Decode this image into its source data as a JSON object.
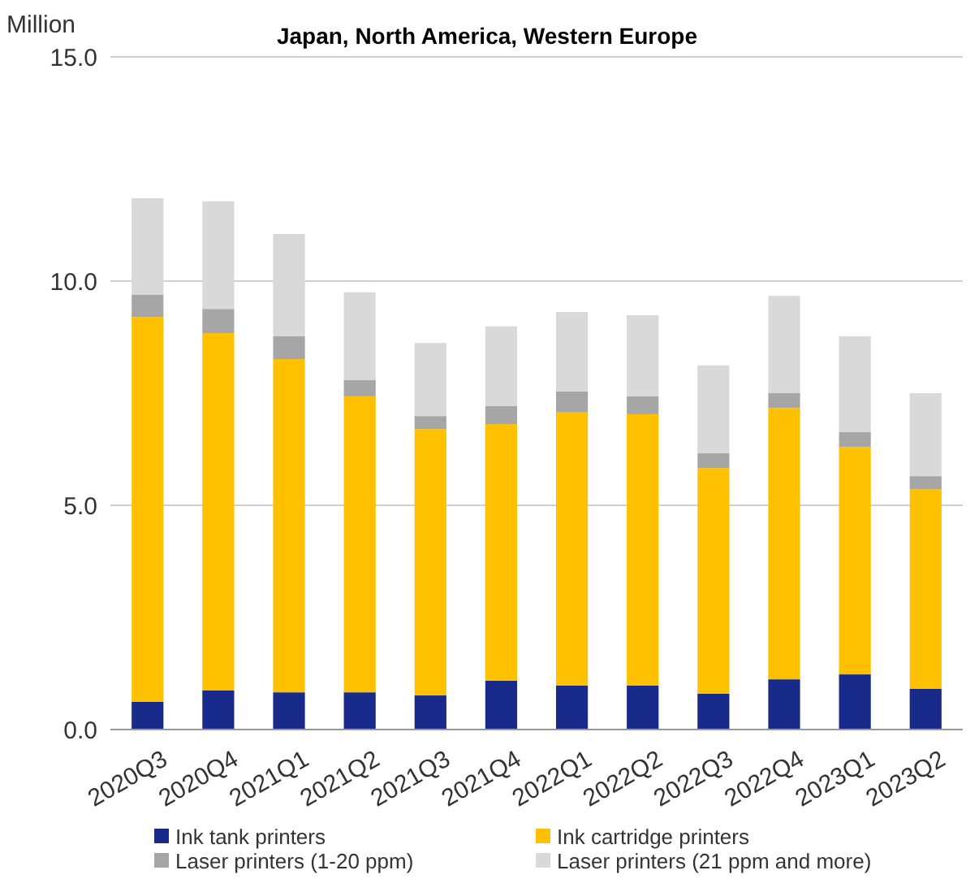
{
  "chart_data": {
    "type": "bar",
    "stacked": true,
    "title": "Japan, North America, Western Europe",
    "ylabel": "Million",
    "categories": [
      "2020Q3",
      "2020Q4",
      "2021Q1",
      "2021Q2",
      "2021Q3",
      "2021Q4",
      "2022Q1",
      "2022Q2",
      "2022Q3",
      "2022Q4",
      "2023Q1",
      "2023Q2"
    ],
    "series": [
      {
        "name": "Ink tank printers",
        "color": "#182a8a",
        "values": [
          0.62,
          0.87,
          0.83,
          0.83,
          0.76,
          1.09,
          0.98,
          0.98,
          0.8,
          1.12,
          1.23,
          0.91
        ]
      },
      {
        "name": "Ink cartridge printers",
        "color": "#ffc000",
        "values": [
          8.58,
          7.97,
          7.43,
          6.6,
          5.94,
          5.72,
          6.09,
          6.05,
          5.03,
          6.05,
          5.07,
          4.45
        ]
      },
      {
        "name": "Laser printers (1-20 ppm)",
        "color": "#a6a6a6",
        "values": [
          0.5,
          0.54,
          0.51,
          0.36,
          0.29,
          0.4,
          0.47,
          0.4,
          0.33,
          0.33,
          0.33,
          0.29
        ]
      },
      {
        "name": "Laser printers (21 ppm and more)",
        "color": "#d9d9d9",
        "values": [
          2.15,
          2.4,
          2.28,
          1.96,
          1.63,
          1.78,
          1.77,
          1.81,
          1.96,
          2.17,
          2.14,
          1.85
        ]
      }
    ],
    "ylim": [
      0,
      15
    ],
    "yticks": [
      {
        "value": 0,
        "label": "0.0"
      },
      {
        "value": 5,
        "label": "5.0"
      },
      {
        "value": 10,
        "label": "10.0"
      },
      {
        "value": 15,
        "label": "15.0"
      }
    ],
    "grid": "y",
    "legend": "bottom"
  }
}
